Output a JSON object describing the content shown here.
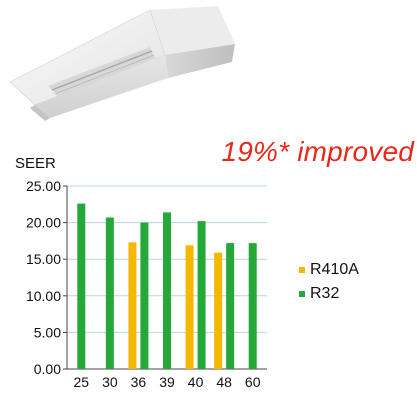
{
  "headline": "19%* improved",
  "colors": {
    "r410a": "#f5b800",
    "r32": "#25a838",
    "headline": "#e8281b",
    "grid": "#bcd4e8"
  },
  "chart_data": {
    "type": "bar",
    "ylabel": "SEER",
    "ylim": [
      0,
      25
    ],
    "yticks": [
      "0.00",
      "5.00",
      "10.00",
      "15.00",
      "20.00",
      "25.00"
    ],
    "categories": [
      "25",
      "30",
      "36",
      "39",
      "40",
      "48",
      "60"
    ],
    "series": [
      {
        "name": "R410A",
        "color": "#f5b800",
        "values": [
          null,
          null,
          17.3,
          null,
          16.9,
          15.9,
          null
        ]
      },
      {
        "name": "R32",
        "color": "#25a838",
        "values": [
          22.6,
          20.7,
          20.0,
          21.4,
          20.2,
          17.2,
          17.2
        ]
      }
    ],
    "legend": "right"
  }
}
